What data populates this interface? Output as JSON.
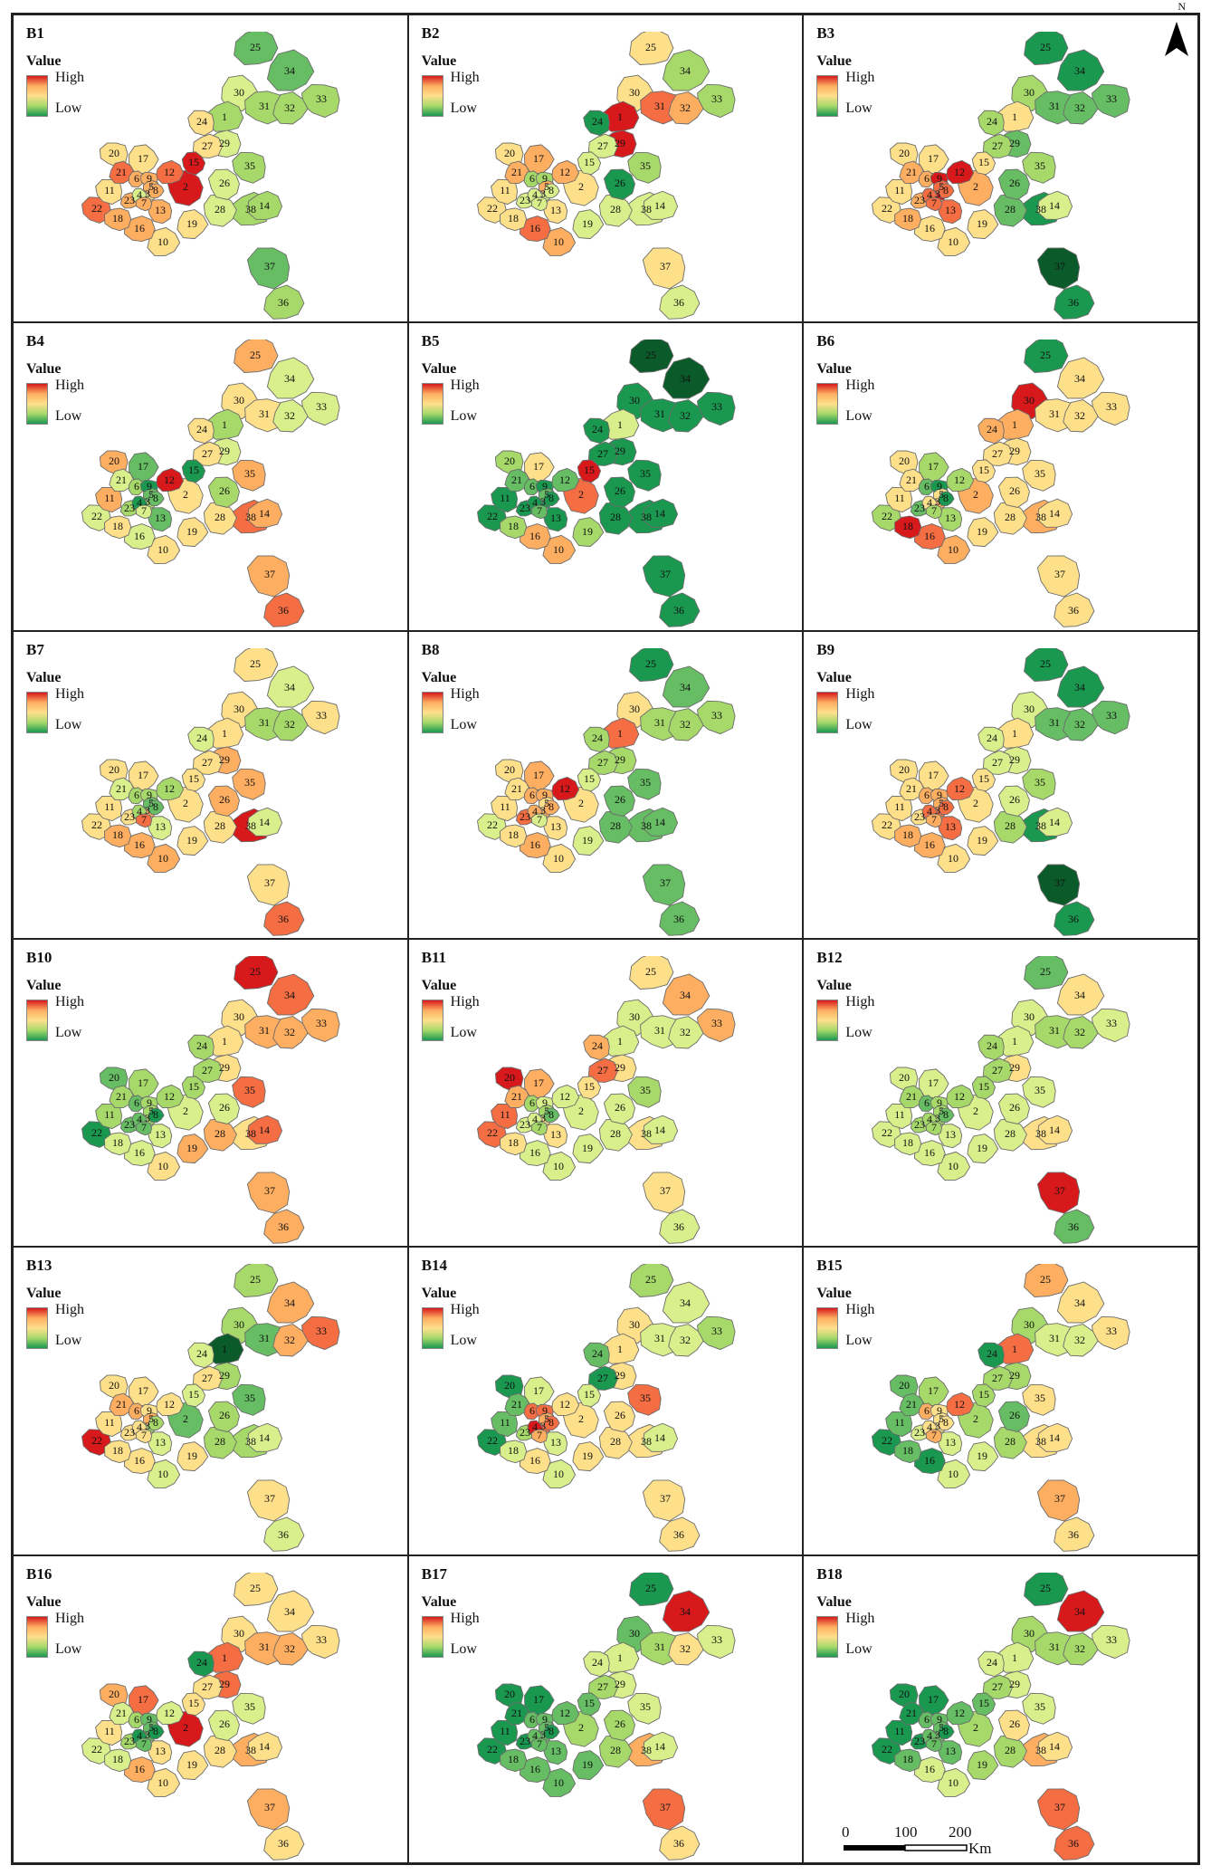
{
  "legend": {
    "title": "Value",
    "high": "High",
    "low": "Low"
  },
  "north_label": "N",
  "scalebar": {
    "ticks": [
      "0",
      "100",
      "200"
    ],
    "unit": "Km"
  },
  "colors": {
    "1": "#d7191c",
    "2": "#f46d43",
    "3": "#fdae61",
    "4": "#fee08b",
    "5": "#d9ef8b",
    "6": "#a6d96a",
    "7": "#66bd63",
    "8": "#1a9850",
    "9": "#0b5a2a"
  },
  "panels": [
    {
      "title": "B1",
      "values": {
        "1": 6,
        "2": 1,
        "3": 4,
        "4": 5,
        "5": 3,
        "6": 3,
        "7": 3,
        "8": 3,
        "9": 3,
        "10": 4,
        "11": 4,
        "12": 2,
        "13": 3,
        "14": 6,
        "15": 1,
        "16": 3,
        "17": 4,
        "18": 3,
        "19": 4,
        "20": 4,
        "21": 2,
        "22": 2,
        "23": 3,
        "24": 4,
        "25": 7,
        "26": 5,
        "27": 4,
        "28": 5,
        "29": 5,
        "30": 5,
        "31": 6,
        "32": 6,
        "33": 6,
        "34": 7,
        "35": 6,
        "36": 6,
        "37": 7,
        "38": 6
      }
    },
    {
      "title": "B2",
      "values": {
        "1": 1,
        "2": 4,
        "3": 5,
        "4": 5,
        "5": 3,
        "6": 6,
        "7": 5,
        "8": 5,
        "9": 6,
        "10": 3,
        "11": 4,
        "12": 3,
        "13": 4,
        "14": 5,
        "15": 5,
        "16": 2,
        "17": 3,
        "18": 4,
        "19": 5,
        "20": 4,
        "21": 3,
        "22": 4,
        "23": 5,
        "24": 8,
        "25": 4,
        "26": 8,
        "27": 5,
        "28": 5,
        "29": 1,
        "30": 4,
        "31": 2,
        "32": 3,
        "33": 6,
        "34": 6,
        "35": 6,
        "36": 5,
        "37": 4,
        "38": 5
      }
    },
    {
      "title": "B3",
      "values": {
        "1": 4,
        "2": 3,
        "3": 1,
        "4": 2,
        "5": 2,
        "6": 3,
        "7": 2,
        "8": 2,
        "9": 1,
        "10": 4,
        "11": 4,
        "12": 1,
        "13": 2,
        "14": 5,
        "15": 4,
        "16": 4,
        "17": 4,
        "18": 3,
        "19": 4,
        "20": 4,
        "21": 3,
        "22": 4,
        "23": 3,
        "24": 6,
        "25": 8,
        "26": 7,
        "27": 6,
        "28": 7,
        "29": 7,
        "30": 6,
        "31": 7,
        "32": 7,
        "33": 7,
        "34": 8,
        "35": 6,
        "36": 8,
        "37": 9,
        "38": 8
      }
    },
    {
      "title": "B4",
      "values": {
        "1": 6,
        "2": 4,
        "3": 6,
        "4": 8,
        "5": 7,
        "6": 6,
        "7": 5,
        "8": 7,
        "9": 8,
        "10": 4,
        "11": 3,
        "12": 1,
        "13": 7,
        "14": 3,
        "15": 8,
        "16": 5,
        "17": 7,
        "18": 4,
        "19": 4,
        "20": 3,
        "21": 5,
        "22": 5,
        "23": 6,
        "24": 4,
        "25": 3,
        "26": 6,
        "27": 4,
        "28": 4,
        "29": 5,
        "30": 4,
        "31": 4,
        "32": 5,
        "33": 5,
        "34": 5,
        "35": 3,
        "36": 2,
        "37": 3,
        "38": 2
      }
    },
    {
      "title": "B5",
      "values": {
        "1": 5,
        "2": 2,
        "3": 8,
        "4": 8,
        "5": 7,
        "6": 7,
        "7": 7,
        "8": 8,
        "9": 8,
        "10": 3,
        "11": 8,
        "12": 7,
        "13": 8,
        "14": 8,
        "15": 1,
        "16": 3,
        "17": 4,
        "18": 6,
        "19": 6,
        "20": 6,
        "21": 7,
        "22": 8,
        "23": 8,
        "24": 8,
        "25": 9,
        "26": 8,
        "27": 8,
        "28": 8,
        "29": 8,
        "30": 8,
        "31": 8,
        "32": 8,
        "33": 8,
        "34": 9,
        "35": 8,
        "36": 8,
        "37": 8,
        "38": 8
      }
    },
    {
      "title": "B6",
      "values": {
        "1": 3,
        "2": 3,
        "3": 3,
        "4": 4,
        "5": 4,
        "6": 7,
        "7": 6,
        "8": 8,
        "9": 8,
        "10": 3,
        "11": 4,
        "12": 6,
        "13": 6,
        "14": 4,
        "15": 4,
        "16": 2,
        "17": 6,
        "18": 1,
        "19": 4,
        "20": 4,
        "21": 4,
        "22": 6,
        "23": 7,
        "24": 3,
        "25": 8,
        "26": 4,
        "27": 4,
        "28": 4,
        "29": 4,
        "30": 1,
        "31": 4,
        "32": 4,
        "33": 4,
        "34": 4,
        "35": 4,
        "36": 4,
        "37": 4,
        "38": 3
      }
    },
    {
      "title": "B7",
      "values": {
        "1": 4,
        "2": 4,
        "3": 3,
        "4": 6,
        "5": 7,
        "6": 6,
        "7": 2,
        "8": 7,
        "9": 6,
        "10": 3,
        "11": 4,
        "12": 6,
        "13": 5,
        "14": 5,
        "15": 4,
        "16": 3,
        "17": 4,
        "18": 3,
        "19": 4,
        "20": 4,
        "21": 5,
        "22": 4,
        "23": 4,
        "24": 5,
        "25": 4,
        "26": 3,
        "27": 4,
        "28": 4,
        "29": 3,
        "30": 4,
        "31": 6,
        "32": 6,
        "33": 4,
        "34": 5,
        "35": 3,
        "36": 2,
        "37": 4,
        "38": 1
      }
    },
    {
      "title": "B8",
      "values": {
        "1": 2,
        "2": 4,
        "3": 3,
        "4": 3,
        "5": 4,
        "6": 3,
        "7": 5,
        "8": 3,
        "9": 3,
        "10": 4,
        "11": 4,
        "12": 1,
        "13": 4,
        "14": 7,
        "15": 5,
        "16": 3,
        "17": 3,
        "18": 4,
        "19": 5,
        "20": 4,
        "21": 4,
        "22": 5,
        "23": 2,
        "24": 6,
        "25": 8,
        "26": 7,
        "27": 6,
        "28": 7,
        "29": 6,
        "30": 4,
        "31": 6,
        "32": 6,
        "33": 6,
        "34": 7,
        "35": 7,
        "36": 7,
        "37": 7,
        "38": 7
      }
    },
    {
      "title": "B9",
      "values": {
        "1": 4,
        "2": 4,
        "3": 2,
        "4": 2,
        "5": 3,
        "6": 3,
        "7": 3,
        "8": 2,
        "9": 3,
        "10": 4,
        "11": 4,
        "12": 2,
        "13": 2,
        "14": 5,
        "15": 4,
        "16": 3,
        "17": 4,
        "18": 3,
        "19": 4,
        "20": 4,
        "21": 4,
        "22": 4,
        "23": 4,
        "24": 5,
        "25": 8,
        "26": 5,
        "27": 5,
        "28": 6,
        "29": 5,
        "30": 5,
        "31": 7,
        "32": 7,
        "33": 7,
        "34": 8,
        "35": 6,
        "36": 8,
        "37": 9,
        "38": 8
      }
    },
    {
      "title": "B10",
      "values": {
        "1": 4,
        "2": 5,
        "3": 6,
        "4": 7,
        "5": 6,
        "6": 7,
        "7": 7,
        "8": 8,
        "9": 6,
        "10": 4,
        "11": 6,
        "12": 6,
        "13": 5,
        "14": 2,
        "15": 6,
        "16": 5,
        "17": 6,
        "18": 5,
        "19": 3,
        "20": 7,
        "21": 6,
        "22": 8,
        "23": 7,
        "24": 6,
        "25": 1,
        "26": 5,
        "27": 6,
        "28": 3,
        "29": 4,
        "30": 4,
        "31": 3,
        "32": 3,
        "33": 3,
        "34": 2,
        "35": 2,
        "36": 3,
        "37": 3,
        "38": 4
      }
    },
    {
      "title": "B11",
      "values": {
        "1": 5,
        "2": 5,
        "3": 4,
        "4": 5,
        "5": 6,
        "6": 6,
        "7": 6,
        "8": 7,
        "9": 5,
        "10": 5,
        "11": 2,
        "12": 5,
        "13": 4,
        "14": 5,
        "15": 4,
        "16": 5,
        "17": 3,
        "18": 4,
        "19": 5,
        "20": 1,
        "21": 3,
        "22": 2,
        "23": 5,
        "24": 3,
        "25": 4,
        "26": 5,
        "27": 2,
        "28": 5,
        "29": 4,
        "30": 5,
        "31": 5,
        "32": 5,
        "33": 3,
        "34": 3,
        "35": 6,
        "36": 5,
        "37": 4,
        "38": 4
      }
    },
    {
      "title": "B12",
      "values": {
        "1": 5,
        "2": 5,
        "3": 6,
        "4": 6,
        "5": 6,
        "6": 7,
        "7": 6,
        "8": 7,
        "9": 6,
        "10": 5,
        "11": 5,
        "12": 6,
        "13": 5,
        "14": 4,
        "15": 6,
        "16": 5,
        "17": 5,
        "18": 5,
        "19": 5,
        "20": 5,
        "21": 6,
        "22": 5,
        "23": 6,
        "24": 6,
        "25": 7,
        "26": 5,
        "27": 6,
        "28": 5,
        "29": 4,
        "30": 5,
        "31": 6,
        "32": 6,
        "33": 5,
        "34": 4,
        "35": 5,
        "36": 7,
        "37": 1,
        "38": 4
      }
    },
    {
      "title": "B13",
      "values": {
        "1": 9,
        "2": 7,
        "3": 6,
        "4": 4,
        "5": 3,
        "6": 3,
        "7": 4,
        "8": 6,
        "9": 4,
        "10": 5,
        "11": 4,
        "12": 4,
        "13": 5,
        "14": 5,
        "15": 5,
        "16": 4,
        "17": 4,
        "18": 4,
        "19": 4,
        "20": 4,
        "21": 3,
        "22": 1,
        "23": 4,
        "24": 5,
        "25": 6,
        "26": 6,
        "27": 4,
        "28": 6,
        "29": 6,
        "30": 6,
        "31": 7,
        "32": 3,
        "33": 2,
        "34": 3,
        "35": 7,
        "36": 5,
        "37": 4,
        "38": 6
      }
    },
    {
      "title": "B14",
      "values": {
        "1": 4,
        "2": 4,
        "3": 2,
        "4": 1,
        "5": 3,
        "6": 2,
        "7": 3,
        "8": 2,
        "9": 2,
        "10": 5,
        "11": 7,
        "12": 4,
        "13": 5,
        "14": 5,
        "15": 5,
        "16": 4,
        "17": 5,
        "18": 5,
        "19": 4,
        "20": 8,
        "21": 7,
        "22": 8,
        "23": 6,
        "24": 7,
        "25": 6,
        "26": 4,
        "27": 8,
        "28": 4,
        "29": 4,
        "30": 4,
        "31": 5,
        "32": 5,
        "33": 6,
        "34": 5,
        "35": 2,
        "36": 4,
        "37": 4,
        "38": 4
      }
    },
    {
      "title": "B15",
      "values": {
        "1": 2,
        "2": 6,
        "3": 4,
        "4": 4,
        "5": 4,
        "6": 3,
        "7": 3,
        "8": 4,
        "9": 4,
        "10": 5,
        "11": 7,
        "12": 2,
        "13": 5,
        "14": 4,
        "15": 6,
        "16": 8,
        "17": 6,
        "18": 7,
        "19": 5,
        "20": 7,
        "21": 7,
        "22": 8,
        "23": 5,
        "24": 8,
        "25": 3,
        "26": 7,
        "27": 6,
        "28": 6,
        "29": 6,
        "30": 6,
        "31": 5,
        "32": 5,
        "33": 4,
        "34": 4,
        "35": 4,
        "36": 4,
        "37": 3,
        "38": 4
      }
    },
    {
      "title": "B16",
      "values": {
        "1": 2,
        "2": 1,
        "3": 7,
        "4": 8,
        "5": 7,
        "6": 6,
        "7": 7,
        "8": 8,
        "9": 7,
        "10": 4,
        "11": 4,
        "12": 5,
        "13": 4,
        "14": 4,
        "15": 4,
        "16": 3,
        "17": 2,
        "18": 5,
        "19": 4,
        "20": 3,
        "21": 5,
        "22": 5,
        "23": 6,
        "24": 8,
        "25": 4,
        "26": 5,
        "27": 4,
        "28": 4,
        "29": 2,
        "30": 4,
        "31": 3,
        "32": 3,
        "33": 4,
        "34": 4,
        "35": 5,
        "36": 4,
        "37": 3,
        "38": 3
      }
    },
    {
      "title": "B17",
      "values": {
        "1": 5,
        "2": 6,
        "3": 7,
        "4": 7,
        "5": 7,
        "6": 7,
        "7": 7,
        "8": 8,
        "9": 7,
        "10": 7,
        "11": 8,
        "12": 7,
        "13": 7,
        "14": 5,
        "15": 7,
        "16": 7,
        "17": 8,
        "18": 7,
        "19": 7,
        "20": 8,
        "21": 8,
        "22": 8,
        "23": 8,
        "24": 5,
        "25": 8,
        "26": 6,
        "27": 6,
        "28": 6,
        "29": 5,
        "30": 7,
        "31": 6,
        "32": 4,
        "33": 5,
        "34": 1,
        "35": 5,
        "36": 4,
        "37": 2,
        "38": 3
      }
    },
    {
      "title": "B18",
      "values": {
        "1": 5,
        "2": 6,
        "3": 7,
        "4": 7,
        "5": 7,
        "6": 7,
        "7": 7,
        "8": 8,
        "9": 7,
        "10": 5,
        "11": 8,
        "12": 7,
        "13": 7,
        "14": 4,
        "15": 7,
        "16": 5,
        "17": 8,
        "18": 7,
        "19": 6,
        "20": 8,
        "21": 8,
        "22": 8,
        "23": 8,
        "24": 5,
        "25": 8,
        "26": 4,
        "27": 6,
        "28": 6,
        "29": 5,
        "30": 6,
        "31": 6,
        "32": 6,
        "33": 5,
        "34": 1,
        "35": 5,
        "36": 2,
        "37": 2,
        "38": 3
      }
    }
  ]
}
